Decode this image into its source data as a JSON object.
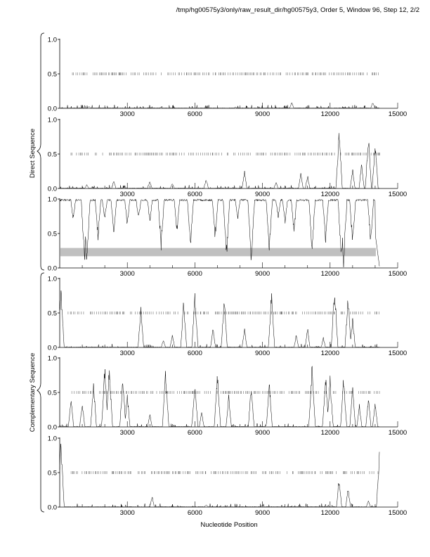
{
  "chart_data": {
    "type": "line",
    "title": "/tmp/hg00575y3/only/raw_result_dir/hg00575y3, Order 5, Window 96, Step 12, 2/2",
    "xlabel": "Nucleotide Position",
    "group_labels": [
      "Direct Sequence",
      "Complementary Sequence"
    ],
    "xlim": [
      0,
      15000
    ],
    "ylim": [
      0,
      1
    ],
    "x_tick_labels": [
      "3000",
      "6000",
      "9000",
      "12000",
      "15000"
    ],
    "x_ticks": [
      3000,
      6000,
      9000,
      12000,
      15000
    ],
    "y_tick_labels": [
      "0.0",
      "0.5",
      "1.0"
    ],
    "y_ticks": [
      0,
      0.5,
      1
    ],
    "sequence_end": 14200,
    "panels": [
      {
        "name": "direct-frame-1",
        "mode": "peaks",
        "peaks": [
          [
            1300,
            0.03
          ],
          [
            4500,
            0.02
          ],
          [
            10300,
            0.1
          ],
          [
            13900,
            0.1
          ],
          [
            7800,
            0.02
          ]
        ]
      },
      {
        "name": "direct-frame-2",
        "mode": "peaks",
        "peaks": [
          [
            2400,
            0.12
          ],
          [
            4000,
            0.12
          ],
          [
            6500,
            0.15
          ],
          [
            8200,
            0.28
          ],
          [
            10700,
            0.25
          ],
          [
            11000,
            0.2
          ],
          [
            12400,
            0.88
          ],
          [
            13000,
            0.3
          ],
          [
            13400,
            0.4
          ],
          [
            13700,
            0.82
          ],
          [
            14000,
            0.72
          ],
          [
            5000,
            0.08
          ],
          [
            9600,
            0.1
          ],
          [
            1200,
            0.06
          ]
        ]
      },
      {
        "name": "noncoding",
        "mode": "dips",
        "band": [
          0.17,
          0.29
        ],
        "band_end": 14000,
        "peaks": [
          [
            1100,
            0.95
          ],
          [
            1200,
            0.97
          ],
          [
            1700,
            0.6
          ],
          [
            2000,
            0.3
          ],
          [
            2400,
            0.55
          ],
          [
            3000,
            0.4
          ],
          [
            3500,
            0.3
          ],
          [
            4500,
            0.75
          ],
          [
            5200,
            0.5
          ],
          [
            5800,
            0.75
          ],
          [
            6900,
            0.6
          ],
          [
            7400,
            0.9
          ],
          [
            8500,
            1.0
          ],
          [
            9300,
            0.8
          ],
          [
            10400,
            0.5
          ],
          [
            11200,
            0.8
          ],
          [
            11800,
            0.65
          ],
          [
            12500,
            0.95
          ],
          [
            12600,
            1.0
          ],
          [
            13000,
            0.7
          ],
          [
            13800,
            0.7
          ],
          [
            600,
            0.3
          ],
          [
            4000,
            0.35
          ],
          [
            7900,
            0.3
          ],
          [
            10000,
            0.35
          ],
          [
            9700,
            0.3
          ]
        ]
      },
      {
        "name": "complementary-frame-1",
        "mode": "peaks",
        "peaks": [
          [
            50,
            0.95
          ],
          [
            3600,
            0.6
          ],
          [
            5000,
            0.2
          ],
          [
            5500,
            0.7
          ],
          [
            6000,
            0.8
          ],
          [
            6800,
            0.3
          ],
          [
            7300,
            0.75
          ],
          [
            8200,
            0.3
          ],
          [
            9400,
            0.85
          ],
          [
            10500,
            0.2
          ],
          [
            11000,
            0.3
          ],
          [
            11700,
            0.15
          ],
          [
            12200,
            0.95
          ],
          [
            12800,
            0.8
          ],
          [
            13000,
            0.45
          ],
          [
            4600,
            0.12
          ]
        ]
      },
      {
        "name": "complementary-frame-2",
        "mode": "peaks",
        "peaks": [
          [
            500,
            0.45
          ],
          [
            1000,
            0.4
          ],
          [
            1500,
            0.7
          ],
          [
            2000,
            0.93
          ],
          [
            2200,
            0.92
          ],
          [
            2800,
            0.75
          ],
          [
            3000,
            0.5
          ],
          [
            4000,
            0.2
          ],
          [
            4700,
            0.88
          ],
          [
            6000,
            0.7
          ],
          [
            6300,
            0.25
          ],
          [
            7000,
            0.85
          ],
          [
            7500,
            0.5
          ],
          [
            8500,
            0.65
          ],
          [
            9300,
            0.72
          ],
          [
            11200,
            0.95
          ],
          [
            11800,
            0.8
          ],
          [
            12000,
            0.75
          ],
          [
            12600,
            0.78
          ],
          [
            13000,
            0.6
          ],
          [
            13300,
            0.35
          ],
          [
            13700,
            0.45
          ],
          [
            14000,
            0.4
          ]
        ]
      },
      {
        "name": "complementary-frame-3",
        "mode": "peaks",
        "peaks": [
          [
            50,
            1.0
          ],
          [
            4100,
            0.18
          ],
          [
            12400,
            0.45
          ],
          [
            12800,
            0.3
          ],
          [
            13700,
            0.1
          ],
          [
            14200,
            0.88
          ],
          [
            6500,
            0.04
          ],
          [
            9000,
            0.03
          ]
        ]
      }
    ],
    "orf_marker_level": 0.5
  }
}
